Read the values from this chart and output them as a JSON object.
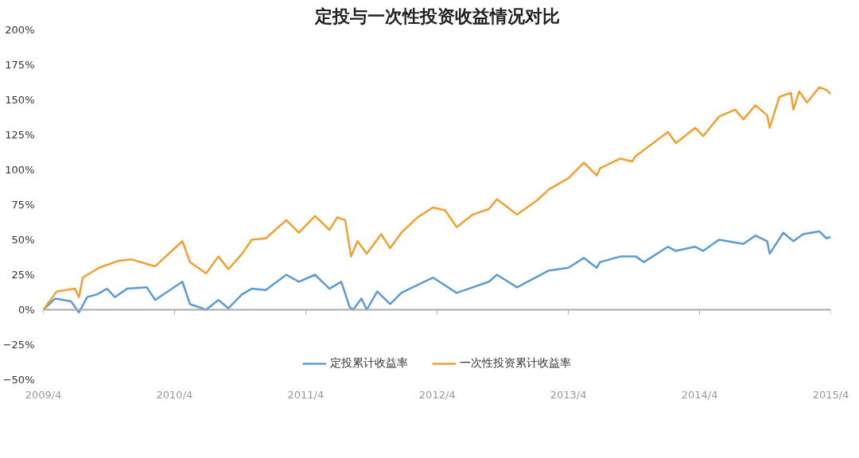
{
  "chart_data": {
    "type": "line",
    "title": "定投与一次性投资收益情况对比",
    "xlim": [
      "2009-04",
      "2015-04"
    ],
    "xticks": [
      {
        "value": "2009-04",
        "label": "2009/4"
      },
      {
        "value": "2010-04",
        "label": "2010/4"
      },
      {
        "value": "2011-04",
        "label": "2011/4"
      },
      {
        "value": "2012-04",
        "label": "2012/4"
      },
      {
        "value": "2013-04",
        "label": "2013/4"
      },
      {
        "value": "2014-04",
        "label": "2014/4"
      },
      {
        "value": "2015-04",
        "label": "2015/4"
      }
    ],
    "ylim": [
      -50,
      200
    ],
    "yticks": [
      {
        "value": -50,
        "label": "−50%"
      },
      {
        "value": -25,
        "label": "−25%"
      },
      {
        "value": 0,
        "label": "0%"
      },
      {
        "value": 25,
        "label": "25%"
      },
      {
        "value": 50,
        "label": "50%"
      },
      {
        "value": 75,
        "label": "75%"
      },
      {
        "value": 100,
        "label": "100%"
      },
      {
        "value": 125,
        "label": "125%"
      },
      {
        "value": 150,
        "label": "150%"
      },
      {
        "value": 175,
        "label": "175%"
      },
      {
        "value": 200,
        "label": "200%"
      }
    ],
    "legend": "bottom",
    "marker": "none",
    "line_style": "solid",
    "series": [
      {
        "name": "定投累计收益率",
        "color": "#5b9bd5",
        "x": [
          "2009-04-01",
          "2009-05-04",
          "2009-06-17",
          "2009-07-09",
          "2009-08-01",
          "2009-08-29",
          "2009-09-25",
          "2009-10-17",
          "2009-11-20",
          "2010-01-14",
          "2010-02-06",
          "2010-04-23",
          "2010-05-14",
          "2010-06-28",
          "2010-08-01",
          "2010-08-29",
          "2010-10-06",
          "2010-11-02",
          "2010-12-11",
          "2011-02-06",
          "2011-03-13",
          "2011-04-27",
          "2011-06-06",
          "2011-07-09",
          "2011-08-01",
          "2011-08-11",
          "2011-09-03",
          "2011-09-18",
          "2011-10-17",
          "2011-11-22",
          "2011-12-23",
          "2012-03-20",
          "2012-05-25",
          "2012-08-23",
          "2012-09-14",
          "2012-11-09",
          "2013-02-06",
          "2013-04-01",
          "2013-05-14",
          "2013-06-19",
          "2013-06-28",
          "2013-08-23",
          "2013-10-06",
          "2013-10-28",
          "2014-01-03",
          "2014-01-25",
          "2014-03-20",
          "2014-04-11",
          "2014-05-25",
          "2014-08-01",
          "2014-09-03",
          "2014-10-06",
          "2014-10-13",
          "2014-11-20",
          "2014-12-18",
          "2015-01-14",
          "2015-02-28",
          "2015-03-20",
          "2015-04-01"
        ],
        "values": [
          0,
          8,
          6,
          -2,
          9,
          11,
          15,
          9,
          15,
          16,
          7,
          20,
          4,
          0,
          7,
          1,
          11,
          15,
          14,
          25,
          20,
          25,
          15,
          20,
          2,
          0,
          8,
          0,
          13,
          4,
          12,
          23,
          12,
          20,
          25,
          16,
          28,
          30,
          37,
          30,
          34,
          38,
          38,
          34,
          45,
          42,
          45,
          42,
          50,
          47,
          53,
          49,
          40,
          55,
          49,
          54,
          56,
          51,
          52
        ]
      },
      {
        "name": "一次性投资累计收益率",
        "color": "#f0a030",
        "x": [
          "2009-04-01",
          "2009-05-08",
          "2009-06-28",
          "2009-07-09",
          "2009-07-20",
          "2009-09-03",
          "2009-10-28",
          "2009-12-01",
          "2010-02-06",
          "2010-04-23",
          "2010-05-14",
          "2010-06-28",
          "2010-08-01",
          "2010-08-29",
          "2010-10-06",
          "2010-11-02",
          "2010-12-11",
          "2011-02-06",
          "2011-03-13",
          "2011-04-27",
          "2011-06-06",
          "2011-06-28",
          "2011-07-20",
          "2011-08-05",
          "2011-08-23",
          "2011-09-18",
          "2011-10-28",
          "2011-11-22",
          "2011-12-23",
          "2012-02-06",
          "2012-03-20",
          "2012-04-23",
          "2012-05-25",
          "2012-07-09",
          "2012-08-23",
          "2012-09-14",
          "2012-11-09",
          "2013-01-03",
          "2013-02-06",
          "2013-04-01",
          "2013-05-14",
          "2013-06-19",
          "2013-06-28",
          "2013-08-23",
          "2013-09-25",
          "2013-10-06",
          "2014-01-03",
          "2014-01-25",
          "2014-03-20",
          "2014-04-11",
          "2014-05-25",
          "2014-07-09",
          "2014-08-01",
          "2014-09-03",
          "2014-10-06",
          "2014-10-13",
          "2014-11-09",
          "2014-12-11",
          "2014-12-18",
          "2015-01-03",
          "2015-01-25",
          "2015-02-28",
          "2015-03-20",
          "2015-04-01"
        ],
        "values": [
          0,
          13,
          15,
          9,
          23,
          30,
          35,
          36,
          31,
          49,
          34,
          26,
          38,
          29,
          40,
          50,
          51,
          64,
          55,
          67,
          57,
          66,
          64,
          38,
          49,
          40,
          54,
          44,
          55,
          66,
          73,
          71,
          59,
          68,
          72,
          79,
          68,
          78,
          86,
          94,
          105,
          96,
          101,
          108,
          106,
          110,
          127,
          119,
          130,
          124,
          138,
          143,
          136,
          146,
          139,
          130,
          152,
          155,
          143,
          156,
          148,
          159,
          157,
          154
        ]
      }
    ]
  }
}
